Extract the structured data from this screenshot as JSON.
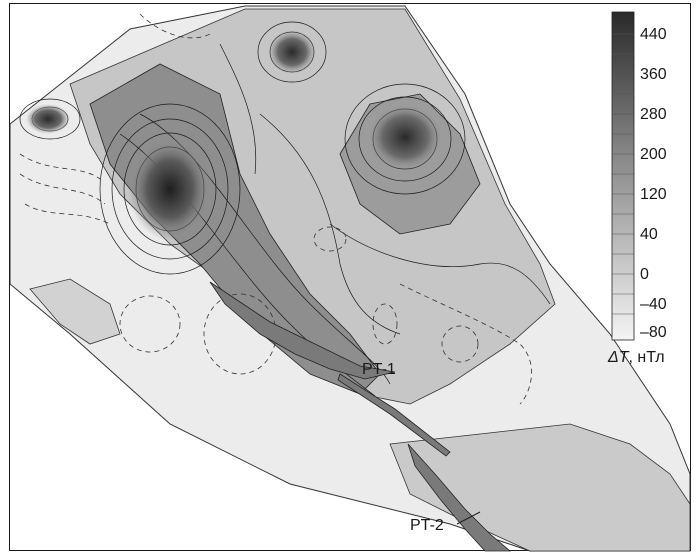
{
  "colorbar": {
    "ticks": [
      "440",
      "360",
      "280",
      "200",
      "120",
      "40",
      "0",
      "–40",
      "–80"
    ],
    "unit_symbol": "ΔT",
    "unit_text": ", нТл",
    "high_color": "#2a2a2a",
    "low_color": "#f4f4f4"
  },
  "labels": {
    "rt1": "PT-1",
    "rt2": "PT-2"
  },
  "colors": {
    "land_light": "#ececec",
    "land_mid": "#c8c8c8",
    "anomaly_dark": "#444444",
    "intrusion": "#7a7a7a"
  }
}
